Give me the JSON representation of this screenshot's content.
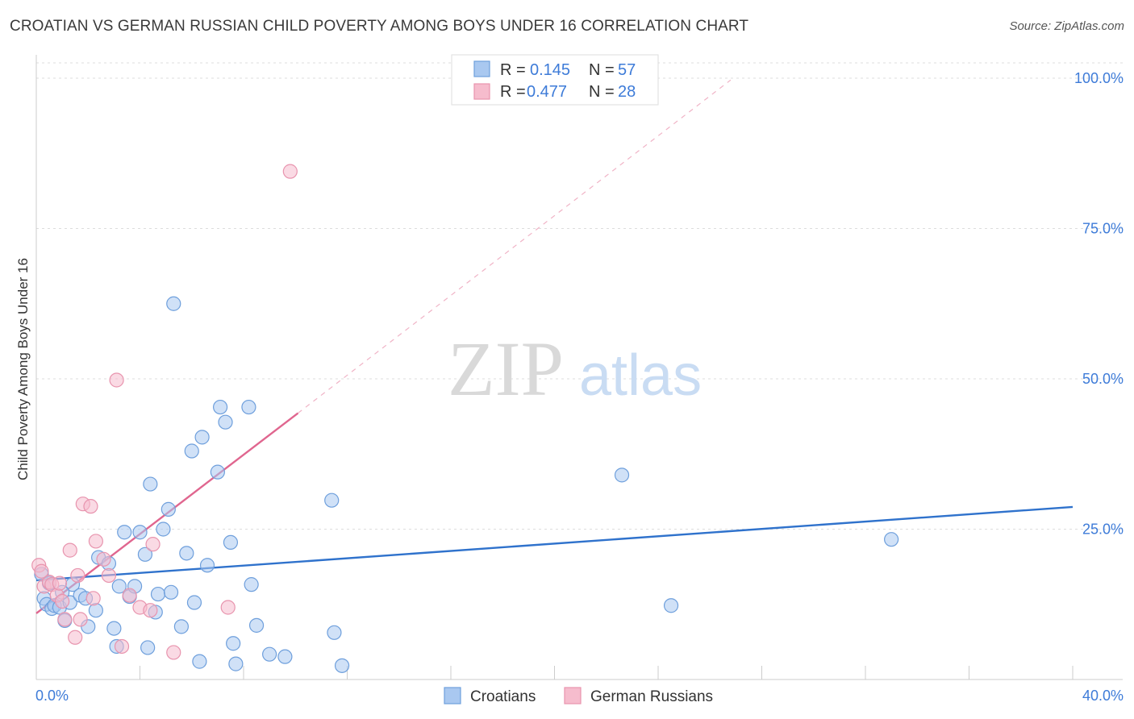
{
  "header": {
    "title": "CROATIAN VS GERMAN RUSSIAN CHILD POVERTY AMONG BOYS UNDER 16 CORRELATION CHART",
    "source": "Source: ZipAtlas.com"
  },
  "watermark": {
    "zip": "ZIP",
    "atlas": "atlas"
  },
  "legend": {
    "rows": [
      {
        "r_label": "R =",
        "r_value": "0.145",
        "n_label": "N =",
        "n_value": "57"
      },
      {
        "r_label": "R =",
        "r_value": "0.477",
        "n_label": "N =",
        "n_value": "28"
      }
    ]
  },
  "bottom_legend": {
    "items": [
      "Croatians",
      "German Russians"
    ]
  },
  "colors": {
    "croatians_fill": "#a9c8f0",
    "croatians_stroke": "#6e9fdc",
    "croatians_line": "#2f72cc",
    "german_fill": "#f6bccd",
    "german_stroke": "#e894ae",
    "german_line": "#e0668f",
    "accent_text": "#3d7bd8",
    "grid": "#dddddd"
  },
  "chart_data": {
    "type": "scatter",
    "title": "CROATIAN VS GERMAN RUSSIAN CHILD POVERTY AMONG BOYS UNDER 16 CORRELATION CHART",
    "xlabel": "",
    "ylabel": "Child Poverty Among Boys Under 16",
    "xlim": [
      0,
      40
    ],
    "ylim": [
      0,
      100
    ],
    "x_ticks": [
      "0.0%",
      "40.0%"
    ],
    "y_ticks": [
      "25.0%",
      "50.0%",
      "75.0%",
      "100.0%"
    ],
    "y_tick_values": [
      25,
      50,
      75,
      100
    ],
    "grid": true,
    "legend_position": "top-center",
    "series": [
      {
        "name": "Croatians",
        "r": 0.145,
        "n": 57,
        "trend": {
          "x": [
            0,
            40
          ],
          "y": [
            16.5,
            28.7
          ],
          "style": "solid"
        },
        "points": [
          [
            0.2,
            17.5
          ],
          [
            0.3,
            13.5
          ],
          [
            0.4,
            12.5
          ],
          [
            0.6,
            11.8
          ],
          [
            0.7,
            12.3
          ],
          [
            0.9,
            12.0
          ],
          [
            1.1,
            9.8
          ],
          [
            1.3,
            12.8
          ],
          [
            1.4,
            15.8
          ],
          [
            1.7,
            14.0
          ],
          [
            1.9,
            13.5
          ],
          [
            2.0,
            8.8
          ],
          [
            2.3,
            11.5
          ],
          [
            2.4,
            20.3
          ],
          [
            2.8,
            19.3
          ],
          [
            3.0,
            8.5
          ],
          [
            3.1,
            5.5
          ],
          [
            3.2,
            15.5
          ],
          [
            3.4,
            24.5
          ],
          [
            3.6,
            13.8
          ],
          [
            3.8,
            15.5
          ],
          [
            4.0,
            24.5
          ],
          [
            4.2,
            20.8
          ],
          [
            4.3,
            5.3
          ],
          [
            4.4,
            32.5
          ],
          [
            4.6,
            11.2
          ],
          [
            4.7,
            14.2
          ],
          [
            4.9,
            25.0
          ],
          [
            5.1,
            28.3
          ],
          [
            5.2,
            14.5
          ],
          [
            5.3,
            62.5
          ],
          [
            5.6,
            8.8
          ],
          [
            5.8,
            21.0
          ],
          [
            6.0,
            38.0
          ],
          [
            6.1,
            12.8
          ],
          [
            6.3,
            3.0
          ],
          [
            6.4,
            40.3
          ],
          [
            6.6,
            19.0
          ],
          [
            7.0,
            34.5
          ],
          [
            7.1,
            45.3
          ],
          [
            7.3,
            42.8
          ],
          [
            7.5,
            22.8
          ],
          [
            7.6,
            6.0
          ],
          [
            7.7,
            2.6
          ],
          [
            8.2,
            45.3
          ],
          [
            8.3,
            15.8
          ],
          [
            8.5,
            9.0
          ],
          [
            9.0,
            4.2
          ],
          [
            9.6,
            3.8
          ],
          [
            11.4,
            29.8
          ],
          [
            11.5,
            7.8
          ],
          [
            11.8,
            2.3
          ],
          [
            22.6,
            34.0
          ],
          [
            24.5,
            12.3
          ],
          [
            33.0,
            23.3
          ],
          [
            0.5,
            16.0
          ],
          [
            1.0,
            14.5
          ]
        ]
      },
      {
        "name": "German Russians",
        "r": 0.477,
        "n": 28,
        "trend": {
          "x": [
            0,
            10.1
          ],
          "y": [
            11.0,
            44.3
          ],
          "style": "solid",
          "extended_x": [
            10.1,
            26.8
          ],
          "extended_y": [
            44.3,
            99.7
          ],
          "extended_style": "dashed"
        },
        "points": [
          [
            0.1,
            19.0
          ],
          [
            0.3,
            15.5
          ],
          [
            0.5,
            16.2
          ],
          [
            0.6,
            15.8
          ],
          [
            0.8,
            14.0
          ],
          [
            0.9,
            16.0
          ],
          [
            1.1,
            10.0
          ],
          [
            1.3,
            21.5
          ],
          [
            1.5,
            7.0
          ],
          [
            1.6,
            17.3
          ],
          [
            1.7,
            10.0
          ],
          [
            1.8,
            29.2
          ],
          [
            2.1,
            28.8
          ],
          [
            2.2,
            13.5
          ],
          [
            2.3,
            23.0
          ],
          [
            2.6,
            20.0
          ],
          [
            2.8,
            17.3
          ],
          [
            3.1,
            49.8
          ],
          [
            3.3,
            5.5
          ],
          [
            3.6,
            14.0
          ],
          [
            4.0,
            12.0
          ],
          [
            4.4,
            11.5
          ],
          [
            4.5,
            22.5
          ],
          [
            5.3,
            4.5
          ],
          [
            7.4,
            12.0
          ],
          [
            9.8,
            84.5
          ],
          [
            0.2,
            18.0
          ],
          [
            1.0,
            13.0
          ]
        ]
      }
    ]
  }
}
